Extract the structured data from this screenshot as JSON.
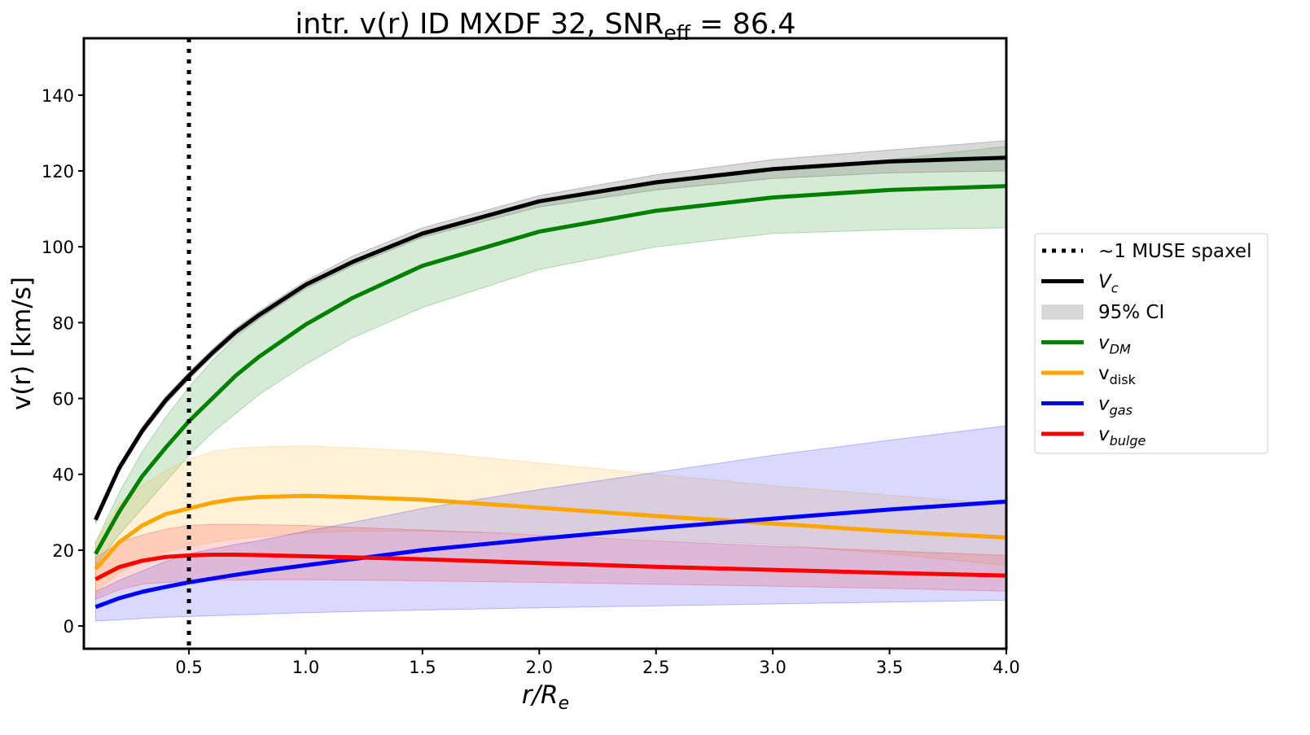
{
  "chart_data": {
    "type": "line",
    "title": {
      "main": "intr. v(r) ID MXDF 32, SNR",
      "sub": "eff",
      "tail": " = 86.4"
    },
    "xlabel": {
      "main": "r/R",
      "sub": "e"
    },
    "ylabel": "v(r) [km/s]",
    "xlim": [
      0.05,
      4.0
    ],
    "ylim": [
      -6,
      155
    ],
    "xticks": [
      0.5,
      1.0,
      1.5,
      2.0,
      2.5,
      3.0,
      3.5,
      4.0
    ],
    "xtick_labels": [
      "0.5",
      "1.0",
      "1.5",
      "2.0",
      "2.5",
      "3.0",
      "3.5",
      "4.0"
    ],
    "yticks": [
      0,
      20,
      40,
      60,
      80,
      100,
      120,
      140
    ],
    "ytick_labels": [
      "0",
      "20",
      "40",
      "60",
      "80",
      "100",
      "120",
      "140"
    ],
    "grid": false,
    "legend_placement": "outside-right",
    "vline": {
      "x": 0.5,
      "style": "dotted",
      "color": "#000000"
    },
    "x": [
      0.1,
      0.2,
      0.3,
      0.4,
      0.5,
      0.6,
      0.7,
      0.8,
      1.0,
      1.2,
      1.5,
      2.0,
      2.5,
      3.0,
      3.5,
      4.0
    ],
    "series": [
      {
        "key": "vdm",
        "color": "#008000",
        "band_alpha": 0.16,
        "values": [
          19,
          30,
          39.5,
          47,
          54,
          60,
          66,
          71,
          79.5,
          86.5,
          95,
          104,
          109.5,
          113,
          115,
          116
        ],
        "lower": [
          16,
          24,
          31,
          38,
          45,
          51,
          56,
          61,
          69,
          76,
          84,
          94,
          100,
          103.5,
          104.5,
          105
        ],
        "upper": [
          22,
          35,
          46,
          55,
          63,
          70,
          76,
          81,
          90,
          96,
          104,
          112,
          116.5,
          120,
          123,
          126.5
        ]
      },
      {
        "key": "vdisk",
        "color": "#FFA500",
        "band_alpha": 0.15,
        "values": [
          15,
          22,
          26.5,
          29.5,
          31,
          32.5,
          33.5,
          34,
          34.3,
          34,
          33.3,
          31.2,
          29,
          27,
          25,
          23.3
        ],
        "lower": [
          9,
          14,
          17,
          19.5,
          21,
          22,
          23,
          23.5,
          24.5,
          25,
          25,
          24.5,
          23,
          21.5,
          19,
          16
        ],
        "upper": [
          22,
          32,
          37,
          41,
          44,
          46,
          46.8,
          47.2,
          47.5,
          47,
          46,
          43,
          40,
          37,
          34.5,
          32
        ]
      },
      {
        "key": "vgas",
        "color": "#0000FF",
        "band_alpha": 0.15,
        "values": [
          5,
          7.3,
          9,
          10.3,
          11.5,
          12.5,
          13.5,
          14.4,
          16,
          17.6,
          20,
          23,
          25.8,
          28.3,
          30.7,
          32.8
        ],
        "lower": [
          1.3,
          1.6,
          2,
          2.3,
          2.5,
          2.7,
          2.9,
          3.1,
          3.5,
          3.8,
          4.2,
          4.8,
          5.3,
          5.8,
          6.3,
          6.8
        ],
        "upper": [
          9,
          12,
          14.5,
          17,
          19,
          20.3,
          21.5,
          22.5,
          25,
          27.3,
          31,
          36,
          40.5,
          45,
          49,
          52.8
        ]
      },
      {
        "key": "vbulge",
        "color": "#FF0000",
        "band_alpha": 0.15,
        "values": [
          12.3,
          15.5,
          17.2,
          18.2,
          18.6,
          18.8,
          18.8,
          18.7,
          18.4,
          18.1,
          17.6,
          16.6,
          15.6,
          14.8,
          14,
          13.3
        ],
        "lower": [
          7,
          9.5,
          11,
          11.5,
          11.8,
          12,
          12.1,
          12.2,
          12.2,
          12.1,
          11.9,
          11.5,
          11,
          10.5,
          9.9,
          9.2
        ],
        "upper": [
          18,
          22,
          24,
          25.5,
          26.5,
          26.8,
          26.8,
          26.7,
          26.5,
          26,
          25.3,
          24,
          22.5,
          21,
          19.8,
          18.6
        ]
      },
      {
        "key": "vc",
        "color": "#000000",
        "band_color": "#808080",
        "band_alpha": 0.3,
        "values": [
          28,
          41.5,
          51.5,
          59.5,
          66,
          72,
          77.5,
          82,
          90,
          96,
          103.5,
          112,
          117,
          120.5,
          122.5,
          123.5
        ],
        "lower": [
          27,
          40.5,
          50.5,
          58.5,
          65,
          71,
          76.5,
          81,
          89,
          95,
          102.5,
          110.5,
          115,
          118,
          119.5,
          120
        ],
        "upper": [
          29,
          42.5,
          52.5,
          60.5,
          67,
          73,
          78.5,
          83,
          91,
          97.5,
          105,
          113.5,
          119,
          123,
          125.5,
          128
        ]
      }
    ],
    "legend": [
      {
        "kind": "dotted",
        "color": "#000000",
        "main": "~1 MUSE spaxel",
        "sub": "",
        "italic": false
      },
      {
        "kind": "line",
        "color": "#000000",
        "main": "V",
        "sub": "c",
        "italic": true
      },
      {
        "kind": "patch",
        "color": "#D8D8D8",
        "main": "95% CI",
        "sub": "",
        "italic": false
      },
      {
        "kind": "line",
        "color": "#008000",
        "main": "v",
        "sub": "DM",
        "italic": true
      },
      {
        "kind": "line",
        "color": "#FFA500",
        "main": "v",
        "sub": "disk",
        "italic": false
      },
      {
        "kind": "line",
        "color": "#0000FF",
        "main": "v",
        "sub": "gas",
        "italic": true
      },
      {
        "kind": "line",
        "color": "#FF0000",
        "main": "v",
        "sub": "bulge",
        "italic": true
      }
    ]
  }
}
